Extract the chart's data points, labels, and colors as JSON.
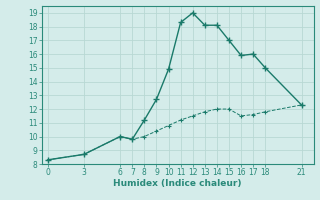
{
  "xlabel": "Humidex (Indice chaleur)",
  "bg_color": "#d4ecea",
  "line_color": "#1a7a6a",
  "grid_color": "#b8d8d4",
  "spine_color": "#2a8a7a",
  "curve1_x": [
    0,
    3,
    6,
    7,
    8,
    9,
    10,
    11,
    12,
    13,
    14,
    15,
    16,
    17,
    18,
    21
  ],
  "curve1_y": [
    8.3,
    8.7,
    10.0,
    9.8,
    11.2,
    12.7,
    14.9,
    18.3,
    19.0,
    18.1,
    18.1,
    17.0,
    15.9,
    16.0,
    15.0,
    12.3
  ],
  "curve2_x": [
    0,
    3,
    6,
    7,
    8,
    9,
    10,
    11,
    12,
    13,
    14,
    15,
    16,
    17,
    18,
    21
  ],
  "curve2_y": [
    8.3,
    8.7,
    10.0,
    9.8,
    10.0,
    10.4,
    10.8,
    11.2,
    11.5,
    11.8,
    12.0,
    12.0,
    11.5,
    11.6,
    11.8,
    12.3
  ],
  "xlim": [
    -0.5,
    22
  ],
  "ylim": [
    8,
    19.5
  ],
  "xticks": [
    0,
    3,
    6,
    7,
    8,
    9,
    10,
    11,
    12,
    13,
    14,
    15,
    16,
    17,
    18,
    21
  ],
  "yticks": [
    8,
    9,
    10,
    11,
    12,
    13,
    14,
    15,
    16,
    17,
    18,
    19
  ],
  "tick_fontsize": 5.5,
  "xlabel_fontsize": 6.5
}
